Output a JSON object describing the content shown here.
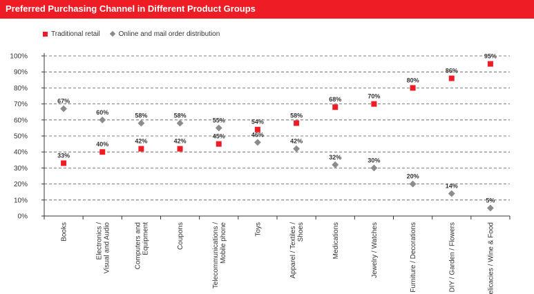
{
  "header": {
    "title": "Preferred Purchasing Channel in Different Product Groups"
  },
  "colors": {
    "title_bar": "#ee1c25",
    "traditional": "#ee1c25",
    "online": "#8c8c8c",
    "grid": "#555555"
  },
  "chart_data": {
    "type": "scatter",
    "title": "Preferred Purchasing Channel in Different Product Groups",
    "categories": [
      "Books",
      "Electronics /\nVisual and Audio",
      "Computers and\nEquipment",
      "Coupons",
      "Telecommunications /\nMobile  phone",
      "Toys",
      "Apparel / Textiles /\nShoes",
      "Medications",
      "Jewelry / Watches",
      "Furniture / Decorations",
      "DIY / Garden / Flowers",
      "Delicacies / Wine & Food"
    ],
    "series": [
      {
        "name": "Traditional retail",
        "marker": "square",
        "color": "#ee1c25",
        "values": [
          33,
          40,
          42,
          42,
          45,
          54,
          58,
          68,
          70,
          80,
          86,
          95
        ],
        "labels": [
          "33%",
          "40%",
          "42%",
          "42%",
          "45%",
          "54%",
          "58%",
          "68%",
          "70%",
          "80%",
          "86%",
          "95%"
        ]
      },
      {
        "name": "Online and mail order distribution",
        "marker": "diamond",
        "color": "#8c8c8c",
        "values": [
          67,
          60,
          58,
          58,
          55,
          46,
          42,
          32,
          30,
          20,
          14,
          5
        ],
        "labels": [
          "67%",
          "60%",
          "58%",
          "58%",
          "55%",
          "46%",
          "42%",
          "32%",
          "30%",
          "20%",
          "14%",
          "5%"
        ]
      }
    ],
    "y_ticks": [
      "0%",
      "10%",
      "20%",
      "30%",
      "40%",
      "50%",
      "60%",
      "70%",
      "80%",
      "90%",
      "100%"
    ],
    "ylim": [
      0,
      100
    ],
    "grid": "horizontal dashed",
    "legend_position": "top-left"
  }
}
